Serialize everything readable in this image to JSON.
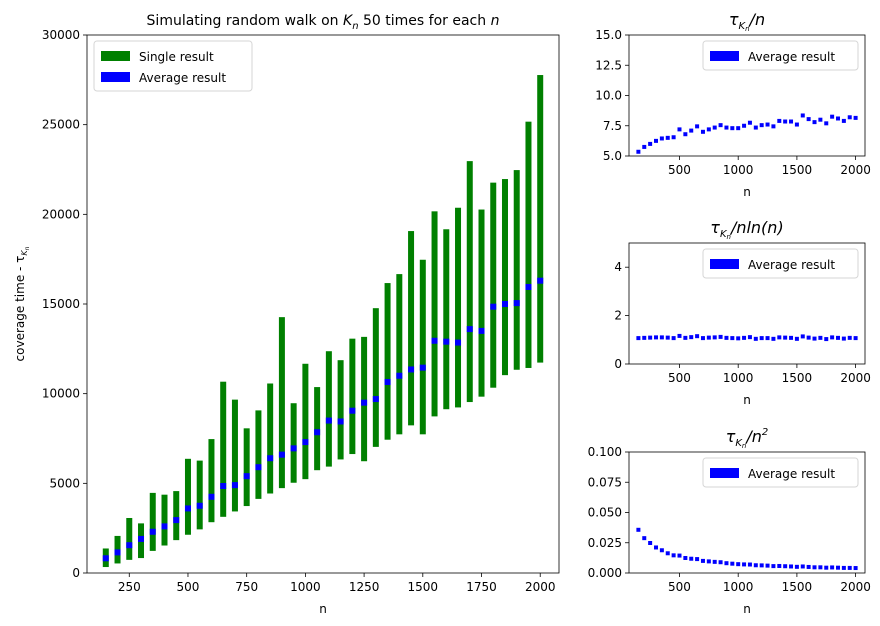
{
  "colors": {
    "single": "#008000",
    "average": "#0000ff"
  },
  "chart_data": [
    {
      "type": "scatter",
      "title_parts": [
        "Simulating random walk on ",
        "K",
        "n",
        " 50 times for each ",
        "n"
      ],
      "xlabel": "n",
      "ylabel": "coverage time - τ",
      "ylabel_sub": "Kn",
      "xlim": [
        70,
        2080
      ],
      "ylim": [
        0,
        30000
      ],
      "xticks": [
        250,
        500,
        750,
        1000,
        1250,
        1500,
        1750,
        2000
      ],
      "yticks": [
        0,
        5000,
        10000,
        15000,
        20000,
        25000,
        30000
      ],
      "legend": {
        "position": "top-left",
        "entries": [
          "Single result",
          "Average result"
        ]
      },
      "series": [
        {
          "name": "Single result",
          "x": [
            150,
            200,
            250,
            300,
            350,
            400,
            450,
            500,
            550,
            600,
            650,
            700,
            750,
            800,
            850,
            900,
            950,
            1000,
            1050,
            1100,
            1150,
            1200,
            1250,
            1300,
            1350,
            1400,
            1450,
            1500,
            1550,
            1600,
            1650,
            1700,
            1750,
            1800,
            1850,
            1900,
            1950,
            2000
          ],
          "min": [
            500,
            700,
            900,
            1000,
            1400,
            1700,
            2000,
            2300,
            2600,
            3000,
            3300,
            3600,
            3900,
            4300,
            4600,
            4900,
            5200,
            5400,
            5900,
            6100,
            6500,
            6800,
            6400,
            7200,
            7600,
            7900,
            8400,
            7900,
            8900,
            9300,
            9400,
            9700,
            10000,
            10500,
            11200,
            11500,
            11600,
            11900
          ],
          "max": [
            1200,
            1900,
            2900,
            2600,
            4300,
            4200,
            4400,
            6200,
            6100,
            7300,
            10500,
            9500,
            7900,
            8900,
            10400,
            14100,
            9300,
            11500,
            10200,
            12200,
            11700,
            12900,
            13000,
            14600,
            16000,
            16500,
            18900,
            17300,
            20000,
            19000,
            20200,
            22800,
            20100,
            21600,
            21800,
            22300,
            25000,
            27600
          ]
        },
        {
          "name": "Average result",
          "x": [
            150,
            200,
            250,
            300,
            350,
            400,
            450,
            500,
            550,
            600,
            650,
            700,
            750,
            800,
            850,
            900,
            950,
            1000,
            1050,
            1100,
            1150,
            1200,
            1250,
            1300,
            1350,
            1400,
            1450,
            1500,
            1550,
            1600,
            1650,
            1700,
            1750,
            1800,
            1850,
            1900,
            1950,
            2000
          ],
          "y": [
            820,
            1150,
            1550,
            1900,
            2300,
            2600,
            2950,
            3600,
            3750,
            4250,
            4850,
            4900,
            5400,
            5900,
            6400,
            6600,
            6950,
            7300,
            7850,
            8500,
            8450,
            9050,
            9500,
            9700,
            10650,
            11000,
            11350,
            11450,
            12950,
            12900,
            12850,
            13600,
            13500,
            14850,
            15000,
            15050,
            15950,
            16300
          ]
        }
      ]
    },
    {
      "type": "scatter",
      "title_parts": [
        "τ",
        "Kn",
        "/n"
      ],
      "xlabel": "n",
      "xlim": [
        70,
        2080
      ],
      "ylim": [
        5.0,
        15.0
      ],
      "xticks": [
        500,
        1000,
        1500,
        2000
      ],
      "yticks": [
        5.0,
        7.5,
        10.0,
        12.5,
        15.0
      ],
      "ytick_labels": [
        "5.0",
        "7.5",
        "10.0",
        "12.5",
        "15.0"
      ],
      "legend": {
        "position": "top-right",
        "entries": [
          "Average result"
        ]
      },
      "series": [
        {
          "name": "Average result",
          "x": [
            150,
            200,
            250,
            300,
            350,
            400,
            450,
            500,
            550,
            600,
            650,
            700,
            750,
            800,
            850,
            900,
            950,
            1000,
            1050,
            1100,
            1150,
            1200,
            1250,
            1300,
            1350,
            1400,
            1450,
            1500,
            1550,
            1600,
            1650,
            1700,
            1750,
            1800,
            1850,
            1900,
            1950,
            2000
          ],
          "y": [
            5.35,
            5.75,
            6.0,
            6.25,
            6.45,
            6.5,
            6.55,
            7.2,
            6.8,
            7.1,
            7.45,
            7.0,
            7.2,
            7.35,
            7.55,
            7.35,
            7.3,
            7.3,
            7.5,
            7.75,
            7.35,
            7.55,
            7.6,
            7.45,
            7.9,
            7.85,
            7.85,
            7.6,
            8.35,
            8.05,
            7.8,
            8.0,
            7.7,
            8.25,
            8.1,
            7.9,
            8.2,
            8.15
          ]
        }
      ]
    },
    {
      "type": "scatter",
      "title_parts": [
        "τ",
        "Kn",
        "/nln(n)"
      ],
      "xlabel": "n",
      "xlim": [
        70,
        2080
      ],
      "ylim": [
        0,
        5
      ],
      "xticks": [
        500,
        1000,
        1500,
        2000
      ],
      "yticks": [
        0,
        2,
        4
      ],
      "ytick_labels": [
        "0",
        "2",
        "4"
      ],
      "legend": {
        "position": "top-right",
        "entries": [
          "Average result"
        ]
      },
      "series": [
        {
          "name": "Average result",
          "x": [
            150,
            200,
            250,
            300,
            350,
            400,
            450,
            500,
            550,
            600,
            650,
            700,
            750,
            800,
            850,
            900,
            950,
            1000,
            1050,
            1100,
            1150,
            1200,
            1250,
            1300,
            1350,
            1400,
            1450,
            1500,
            1550,
            1600,
            1650,
            1700,
            1750,
            1800,
            1850,
            1900,
            1950,
            2000
          ],
          "y": [
            1.07,
            1.08,
            1.09,
            1.1,
            1.1,
            1.09,
            1.07,
            1.16,
            1.08,
            1.11,
            1.15,
            1.07,
            1.09,
            1.1,
            1.12,
            1.08,
            1.07,
            1.06,
            1.08,
            1.11,
            1.04,
            1.07,
            1.07,
            1.04,
            1.1,
            1.09,
            1.08,
            1.04,
            1.14,
            1.09,
            1.05,
            1.08,
            1.03,
            1.1,
            1.08,
            1.05,
            1.08,
            1.07
          ]
        }
      ]
    },
    {
      "type": "scatter",
      "title_parts": [
        "τ",
        "Kn",
        "/n",
        "2"
      ],
      "xlabel": "n",
      "xlim": [
        70,
        2080
      ],
      "ylim": [
        0,
        0.1
      ],
      "xticks": [
        500,
        1000,
        1500,
        2000
      ],
      "yticks": [
        0,
        0.025,
        0.05,
        0.075,
        0.1
      ],
      "ytick_labels": [
        "0.000",
        "0.025",
        "0.050",
        "0.075",
        "0.100"
      ],
      "legend": {
        "position": "top-right",
        "entries": [
          "Average result"
        ]
      },
      "series": [
        {
          "name": "Average result",
          "x": [
            150,
            200,
            250,
            300,
            350,
            400,
            450,
            500,
            550,
            600,
            650,
            700,
            750,
            800,
            850,
            900,
            950,
            1000,
            1050,
            1100,
            1150,
            1200,
            1250,
            1300,
            1350,
            1400,
            1450,
            1500,
            1550,
            1600,
            1650,
            1700,
            1750,
            1800,
            1850,
            1900,
            1950,
            2000
          ],
          "y": [
            0.0357,
            0.0288,
            0.0248,
            0.0211,
            0.0188,
            0.0163,
            0.0146,
            0.0144,
            0.0124,
            0.0118,
            0.0115,
            0.01,
            0.0096,
            0.0092,
            0.0089,
            0.0081,
            0.0077,
            0.0073,
            0.0071,
            0.007,
            0.0064,
            0.0063,
            0.0061,
            0.0057,
            0.0058,
            0.0056,
            0.0054,
            0.0051,
            0.0054,
            0.005,
            0.0047,
            0.0047,
            0.0044,
            0.0046,
            0.0044,
            0.0042,
            0.0042,
            0.0041
          ]
        }
      ]
    }
  ]
}
